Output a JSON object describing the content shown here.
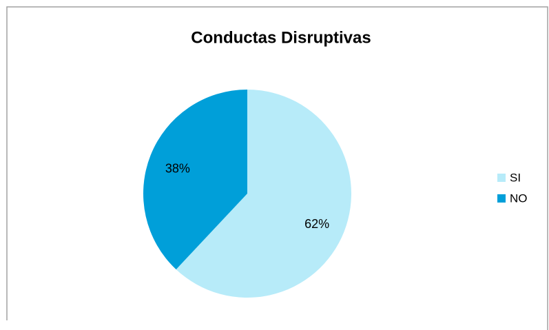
{
  "chart_data": {
    "type": "pie",
    "title": "Conductas Disruptivas",
    "categories": [
      "SI",
      "NO"
    ],
    "values": [
      62,
      38
    ],
    "value_labels": [
      "62%",
      "38%"
    ],
    "colors": [
      "#b7ebf9",
      "#009fd9"
    ],
    "legend": "right"
  }
}
